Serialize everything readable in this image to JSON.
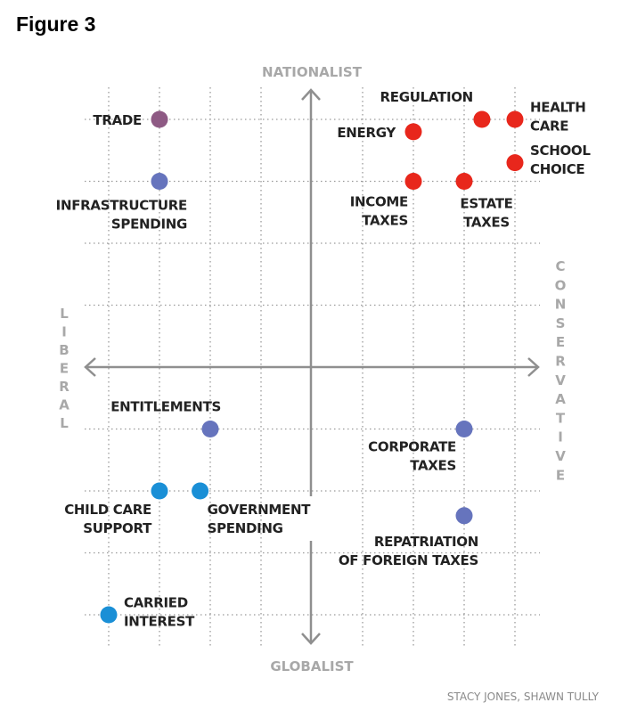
{
  "figure_title": "Figure 3",
  "credit": "STACY JONES, SHAWN TULLY",
  "chart_data": {
    "type": "scatter",
    "title": "Figure 3",
    "axes": {
      "top": "NATIONALIST",
      "bottom": "GLOBALIST",
      "left": "LIBERAL",
      "right": "CONSERVATIVE"
    },
    "xlabel": "Liberal ← → Conservative",
    "ylabel": "Globalist ← → Nationalist",
    "xlim": [
      -4.5,
      4.5
    ],
    "ylim": [
      -4.5,
      4.5
    ],
    "grid": true,
    "colors": {
      "red": "#e8271c",
      "violet": "#6674bd",
      "cyan": "#1a8fd6",
      "purple": "#8e5a84",
      "axis": "#8f8f8f",
      "grid": "#9a9a9a"
    },
    "points": [
      {
        "label": [
          "TRADE"
        ],
        "x": -3,
        "y": 4,
        "color": "purple",
        "anchor": "left"
      },
      {
        "label": [
          "INFRASTRUCTURE",
          "SPENDING"
        ],
        "x": -3,
        "y": 3,
        "color": "violet",
        "anchor": "below-left"
      },
      {
        "label": [
          "REGULATION"
        ],
        "x": 3.35,
        "y": 4,
        "color": "red",
        "anchor": "above-left"
      },
      {
        "label": [
          "HEALTH",
          "CARE"
        ],
        "x": 4,
        "y": 4,
        "color": "red",
        "anchor": "right"
      },
      {
        "label": [
          "ENERGY"
        ],
        "x": 2,
        "y": 3.8,
        "color": "red",
        "anchor": "left"
      },
      {
        "label": [
          "SCHOOL",
          "CHOICE"
        ],
        "x": 4,
        "y": 3.3,
        "color": "red",
        "anchor": "right"
      },
      {
        "label": [
          "INCOME",
          "TAXES"
        ],
        "x": 2,
        "y": 3,
        "color": "red",
        "anchor": "below-left"
      },
      {
        "label": [
          "ESTATE",
          "TAXES"
        ],
        "x": 3,
        "y": 3,
        "color": "red",
        "anchor": "below-center"
      },
      {
        "label": [
          "ENTITLEMENTS"
        ],
        "x": -2,
        "y": -1,
        "color": "violet",
        "anchor": "above-left"
      },
      {
        "label": [
          "CORPORATE",
          "TAXES"
        ],
        "x": 3,
        "y": -1,
        "color": "violet",
        "anchor": "below-left"
      },
      {
        "label": [
          "CHILD CARE",
          "SUPPORT"
        ],
        "x": -3,
        "y": -2,
        "color": "cyan",
        "anchor": "below-left"
      },
      {
        "label": [
          "GOVERNMENT",
          "SPENDING"
        ],
        "x": -2.2,
        "y": -2,
        "color": "cyan",
        "anchor": "below-right"
      },
      {
        "label": [
          "REPATRIATION",
          "OF FOREIGN TAXES"
        ],
        "x": 3,
        "y": -2.4,
        "color": "violet",
        "anchor": "below-left-wide"
      },
      {
        "label": [
          "CARRIED",
          "INTEREST"
        ],
        "x": -4,
        "y": -4,
        "color": "cyan",
        "anchor": "right"
      }
    ]
  }
}
